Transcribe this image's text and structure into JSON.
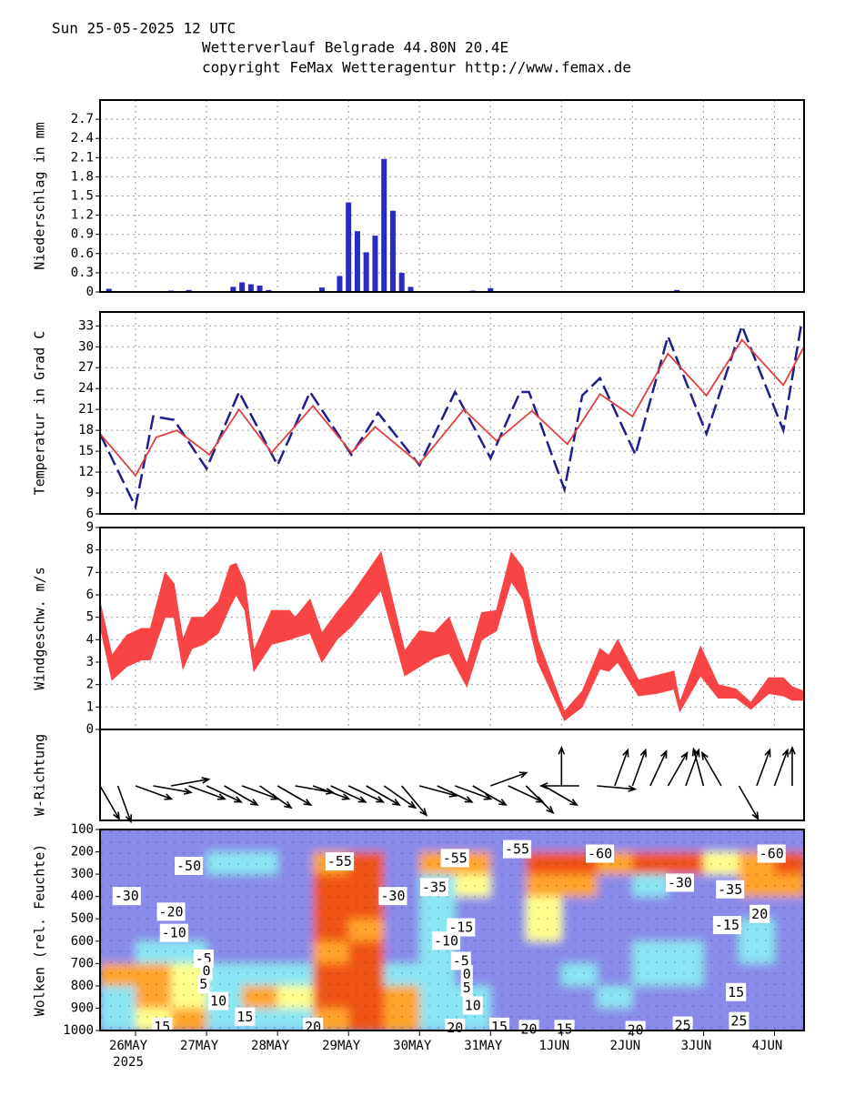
{
  "header": {
    "date": "Sun 25-05-2025 12 UTC",
    "title": "Wetterverlauf Belgrade  44.80N 20.4E",
    "copyright": "copyright FeMax Wetteragentur http://www.femax.de"
  },
  "chart_data": [
    {
      "type": "bar",
      "ylabel": "Niederschlag in mm",
      "color": "#2a2ac4",
      "grid": true,
      "xlim": [
        0,
        238
      ],
      "xticks": [
        12,
        36,
        60,
        84,
        108,
        132,
        156,
        180,
        204,
        228
      ],
      "ylim": [
        0,
        3.0
      ],
      "yticks": [
        0,
        0.3,
        0.6,
        0.9,
        1.2,
        1.5,
        1.8,
        2.1,
        2.4,
        2.7
      ],
      "x": [
        0,
        3,
        6,
        9,
        12,
        15,
        18,
        21,
        24,
        27,
        30,
        33,
        36,
        39,
        42,
        45,
        48,
        51,
        54,
        57,
        60,
        63,
        66,
        69,
        72,
        75,
        78,
        81,
        84,
        87,
        90,
        93,
        96,
        99,
        102,
        105,
        108,
        111,
        114,
        117,
        120,
        123,
        126,
        129,
        132,
        135,
        138,
        141,
        144,
        147,
        150,
        153,
        156,
        159,
        162,
        165,
        168,
        171,
        174,
        177,
        180,
        183,
        186,
        189,
        192,
        195,
        198,
        201,
        204,
        207,
        210,
        213,
        216,
        219,
        222,
        225,
        228,
        231,
        234,
        237
      ],
      "values": [
        0,
        0.05,
        0,
        0,
        0,
        0,
        0,
        0,
        0.02,
        0,
        0.03,
        0,
        0,
        0,
        0,
        0.08,
        0.15,
        0.12,
        0.1,
        0.03,
        0,
        0,
        0,
        0,
        0,
        0.07,
        0,
        0.25,
        1.4,
        0.95,
        0.62,
        0.88,
        2.08,
        1.27,
        0.3,
        0.08,
        0,
        0,
        0,
        0,
        0,
        0,
        0.02,
        0,
        0.06,
        0,
        0,
        0,
        0,
        0,
        0,
        0,
        0,
        0,
        0,
        0,
        0,
        0,
        0,
        0,
        0,
        0,
        0,
        0,
        0,
        0.03,
        0,
        0,
        0,
        0,
        0,
        0,
        0,
        0,
        0,
        0,
        0,
        0,
        0,
        0
      ]
    },
    {
      "type": "line",
      "ylabel": "Temperatur in Grad C",
      "grid": true,
      "xlim": [
        0,
        238
      ],
      "xticks": [
        12,
        36,
        60,
        84,
        108,
        132,
        156,
        180,
        204,
        228
      ],
      "ylim": [
        6,
        35
      ],
      "yticks": [
        6,
        9,
        12,
        15,
        18,
        21,
        24,
        27,
        30,
        33
      ],
      "series": [
        {
          "color": "#1e1e8c",
          "dashed": true,
          "x": [
            0,
            12,
            18,
            25,
            36,
            47,
            60,
            71,
            85,
            94,
            108,
            120,
            132,
            142,
            145,
            157,
            163,
            169,
            181,
            192,
            205,
            217,
            231,
            237
          ],
          "values": [
            17.5,
            7,
            20,
            19.5,
            12.5,
            23.5,
            13,
            23.5,
            14.5,
            20.5,
            13,
            23.5,
            14,
            23.5,
            23.5,
            9.5,
            23,
            25.5,
            14.5,
            31.5,
            17.5,
            33,
            18,
            33
          ]
        },
        {
          "color": "#e04040",
          "dashed": false,
          "x": [
            0,
            12,
            19,
            26,
            37,
            47,
            58,
            72,
            85,
            93,
            108,
            123,
            134,
            146,
            158,
            169,
            180,
            192,
            205,
            217,
            231,
            238
          ],
          "values": [
            17.5,
            11.5,
            17,
            18,
            14.5,
            21,
            14.8,
            21.5,
            14.8,
            18.5,
            13.2,
            21,
            16.5,
            20.8,
            16,
            23.2,
            20,
            29,
            23,
            31,
            24.5,
            30
          ]
        }
      ]
    },
    {
      "type": "band",
      "ylabel": "Windgeschw.  m/s",
      "color": "#f84444",
      "grid": true,
      "xlim": [
        0,
        238
      ],
      "xticks": [
        12,
        36,
        60,
        84,
        108,
        132,
        156,
        180,
        204,
        228
      ],
      "ylim": [
        0,
        9
      ],
      "yticks": [
        0,
        1,
        2,
        3,
        4,
        5,
        6,
        7,
        8,
        9
      ],
      "x": [
        0,
        4,
        9,
        14,
        17,
        22,
        25,
        28,
        31,
        35,
        40,
        44,
        46,
        49,
        52,
        58,
        64,
        66,
        71,
        75,
        80,
        85,
        95,
        103,
        108,
        113,
        118,
        124,
        129,
        134,
        139,
        143,
        148,
        157,
        163,
        169,
        172,
        175,
        182,
        188,
        194,
        196,
        203,
        209,
        215,
        220,
        226,
        231,
        234,
        238
      ],
      "high": [
        5.7,
        3.3,
        4.2,
        4.5,
        4.5,
        7,
        6.5,
        4,
        5,
        5,
        5.7,
        7.3,
        7.4,
        6.5,
        3.5,
        5.3,
        5.3,
        5,
        5.8,
        4.3,
        5.2,
        6,
        7.9,
        3.5,
        4.4,
        4.3,
        5,
        2.9,
        5.2,
        5.3,
        7.9,
        7.2,
        4,
        0.8,
        1.7,
        3.6,
        3.3,
        4,
        2.2,
        2.4,
        2.6,
        1.2,
        3.7,
        2,
        1.8,
        1.2,
        2.3,
        2.3,
        1.9,
        1.7
      ],
      "low": [
        4.6,
        2.2,
        2.8,
        3.1,
        3.1,
        5,
        5,
        2.7,
        3.6,
        3.8,
        4.3,
        5.5,
        6,
        5.3,
        2.6,
        3.8,
        4,
        4.1,
        4.3,
        3,
        4,
        4.6,
        6.2,
        2.4,
        2.8,
        3.2,
        3.4,
        1.9,
        4,
        4.4,
        6.6,
        5.8,
        3,
        0.4,
        1,
        2.7,
        2.6,
        3,
        1.5,
        1.6,
        1.8,
        0.8,
        2.4,
        1.4,
        1.4,
        0.9,
        1.6,
        1.5,
        1.3,
        1.3
      ]
    },
    {
      "type": "arrows",
      "ylabel": "W-Richtung",
      "color": "#000000",
      "xlim": [
        0,
        238
      ],
      "x": [
        0,
        6,
        12,
        18,
        24,
        30,
        36,
        42,
        48,
        54,
        60,
        66,
        72,
        78,
        84,
        90,
        96,
        102,
        108,
        114,
        120,
        126,
        132,
        138,
        144,
        150,
        156,
        162,
        168,
        174,
        180,
        186,
        192,
        198,
        204,
        210,
        216,
        222,
        228,
        234
      ],
      "values": [
        150,
        160,
        110,
        100,
        80,
        110,
        115,
        120,
        110,
        125,
        120,
        100,
        110,
        115,
        115,
        120,
        125,
        140,
        105,
        115,
        110,
        120,
        70,
        115,
        135,
        120,
        0,
        270,
        95,
        20,
        20,
        25,
        30,
        20,
        345,
        330,
        150,
        20,
        20,
        0
      ]
    },
    {
      "type": "heatmap",
      "ylabel": "Wolken (rel. Feuchte)",
      "xlim": [
        0,
        238
      ],
      "xticks": [
        {
          "value": 12,
          "label": "26MAY",
          "sublabel": "2025"
        },
        {
          "value": 36,
          "label": "27MAY"
        },
        {
          "value": 60,
          "label": "28MAY"
        },
        {
          "value": 84,
          "label": "29MAY"
        },
        {
          "value": 108,
          "label": "30MAY"
        },
        {
          "value": 132,
          "label": "31MAY"
        },
        {
          "value": 156,
          "label": "1JUN"
        },
        {
          "value": 180,
          "label": "2JUN"
        },
        {
          "value": 204,
          "label": "3JUN"
        },
        {
          "value": 228,
          "label": "4JUN"
        }
      ],
      "ylim": [
        1000,
        100
      ],
      "yticks": [
        100,
        200,
        300,
        400,
        500,
        600,
        700,
        800,
        900,
        1000
      ],
      "colors": [
        "#8a8aea",
        "#8ae6f2",
        "#ffff8c",
        "#ffa42c",
        "#f05212"
      ],
      "x_edges": [
        0,
        12,
        24,
        36,
        48,
        60,
        72,
        84,
        96,
        108,
        120,
        132,
        144,
        156,
        168,
        180,
        192,
        204,
        216,
        228,
        238
      ],
      "p_edges": [
        100,
        200,
        300,
        400,
        500,
        600,
        700,
        800,
        900,
        1000
      ],
      "values": [
        [
          0,
          0,
          0,
          0,
          0,
          0,
          0,
          0,
          0,
          0,
          0,
          0,
          0,
          0,
          0,
          0,
          0,
          0,
          0,
          0
        ],
        [
          0,
          0,
          0,
          1,
          1,
          0,
          3,
          4,
          0,
          3,
          3,
          0,
          4,
          4,
          3,
          4,
          4,
          2,
          3,
          4
        ],
        [
          0,
          0,
          0,
          0,
          0,
          0,
          4,
          4,
          0,
          1,
          2,
          0,
          3,
          3,
          0,
          1,
          0,
          0,
          3,
          3
        ],
        [
          0,
          0,
          0,
          0,
          0,
          0,
          4,
          4,
          0,
          1,
          0,
          0,
          2,
          0,
          0,
          0,
          0,
          0,
          0,
          0
        ],
        [
          0,
          0,
          0,
          0,
          0,
          0,
          4,
          3,
          0,
          1,
          0,
          0,
          2,
          0,
          0,
          0,
          0,
          0,
          1,
          0
        ],
        [
          0,
          1,
          1,
          0,
          0,
          0,
          3,
          4,
          0,
          1,
          0,
          0,
          0,
          0,
          0,
          1,
          1,
          0,
          1,
          0
        ],
        [
          3,
          3,
          2,
          1,
          1,
          1,
          4,
          4,
          1,
          1,
          0,
          0,
          0,
          1,
          0,
          1,
          1,
          0,
          0,
          0
        ],
        [
          1,
          3,
          2,
          1,
          3,
          2,
          4,
          4,
          3,
          1,
          1,
          0,
          0,
          0,
          1,
          0,
          0,
          0,
          0,
          0
        ],
        [
          1,
          2,
          3,
          1,
          1,
          1,
          3,
          4,
          3,
          1,
          1,
          0,
          0,
          0,
          0,
          0,
          0,
          0,
          0,
          0
        ]
      ],
      "annotations": [
        {
          "x": 30,
          "y": 265,
          "value": -50
        },
        {
          "x": 9,
          "y": 400,
          "value": -30
        },
        {
          "x": 24,
          "y": 470,
          "value": -20
        },
        {
          "x": 25,
          "y": 565,
          "value": -10
        },
        {
          "x": 35,
          "y": 680,
          "value": -5
        },
        {
          "x": 36,
          "y": 735,
          "value": 0
        },
        {
          "x": 35,
          "y": 795,
          "value": 5
        },
        {
          "x": 40,
          "y": 870,
          "value": 10
        },
        {
          "x": 49,
          "y": 940,
          "value": 15
        },
        {
          "x": 21,
          "y": 985,
          "value": 15
        },
        {
          "x": 72,
          "y": 985,
          "value": 20
        },
        {
          "x": 81,
          "y": 245,
          "value": -55
        },
        {
          "x": 99,
          "y": 400,
          "value": -30
        },
        {
          "x": 120,
          "y": 230,
          "value": -55
        },
        {
          "x": 113,
          "y": 360,
          "value": -35
        },
        {
          "x": 122,
          "y": 540,
          "value": -15
        },
        {
          "x": 117,
          "y": 600,
          "value": -10
        },
        {
          "x": 122,
          "y": 690,
          "value": -5
        },
        {
          "x": 124,
          "y": 750,
          "value": 0
        },
        {
          "x": 124,
          "y": 810,
          "value": 5
        },
        {
          "x": 126,
          "y": 890,
          "value": 10
        },
        {
          "x": 120,
          "y": 990,
          "value": 20
        },
        {
          "x": 135,
          "y": 985,
          "value": 15
        },
        {
          "x": 141,
          "y": 190,
          "value": -55
        },
        {
          "x": 145,
          "y": 995,
          "value": 20
        },
        {
          "x": 157,
          "y": 995,
          "value": 15
        },
        {
          "x": 169,
          "y": 210,
          "value": -60
        },
        {
          "x": 181,
          "y": 1000,
          "value": 20
        },
        {
          "x": 196,
          "y": 340,
          "value": -30
        },
        {
          "x": 197,
          "y": 980,
          "value": 25
        },
        {
          "x": 213,
          "y": 370,
          "value": -35
        },
        {
          "x": 212,
          "y": 530,
          "value": -15
        },
        {
          "x": 215,
          "y": 830,
          "value": 15
        },
        {
          "x": 216,
          "y": 960,
          "value": 25
        },
        {
          "x": 227,
          "y": 210,
          "value": -60
        },
        {
          "x": 223,
          "y": 480,
          "value": 20
        }
      ]
    }
  ]
}
